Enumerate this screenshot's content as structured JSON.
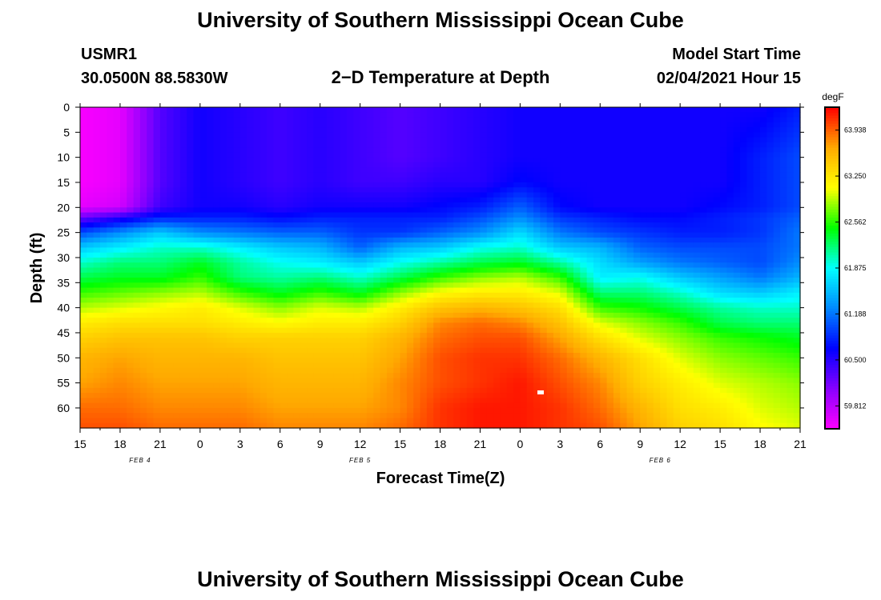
{
  "page": {
    "title_top": "University of Southern Mississippi Ocean Cube",
    "title_bottom": "University of Southern Mississippi Ocean Cube",
    "station_id": "USMR1",
    "coordinates": "30.0500N 88.5830W",
    "plot_title": "2−D Temperature at Depth",
    "model_start_label": "Model Start Time",
    "model_start_value": "02/04/2021 Hour 15"
  },
  "chart_data": {
    "type": "heatmap",
    "title": "2−D Temperature at Depth",
    "xlabel": "Forecast Time(Z)",
    "ylabel": "Depth (ft)",
    "x_tick_labels": [
      "15",
      "18",
      "21",
      "0",
      "3",
      "6",
      "9",
      "12",
      "15",
      "18",
      "21",
      "0",
      "3",
      "6",
      "9",
      "12",
      "15",
      "18",
      "21"
    ],
    "date_labels": [
      {
        "label": "FEB 4",
        "tick_index": 1.5
      },
      {
        "label": "FEB 5",
        "tick_index": 7
      },
      {
        "label": "FEB 6",
        "tick_index": 14.5
      }
    ],
    "x_range_hours": [
      0,
      54
    ],
    "y_ticks": [
      0,
      5,
      10,
      15,
      20,
      25,
      30,
      35,
      40,
      45,
      50,
      55,
      60
    ],
    "ylim": [
      0,
      64
    ],
    "colorbar": {
      "unit": "degF",
      "vmin": 59.47,
      "vmax": 64.28,
      "tick_values": [
        63.938,
        63.25,
        62.562,
        61.875,
        61.188,
        60.5,
        59.812
      ],
      "tick_labels": [
        "63.938",
        "63.250",
        "62.562",
        "61.875",
        "61.188",
        "60.500",
        "59.812"
      ],
      "colors": [
        "#ff00ff",
        "#8800ff",
        "#0000ff",
        "#0088ff",
        "#00ffff",
        "#00ff00",
        "#ffff00",
        "#ffaa00",
        "#ff0000"
      ]
    },
    "grid": {
      "hours": [
        0,
        3,
        6,
        9,
        12,
        15,
        18,
        21,
        24,
        27,
        30,
        33,
        36,
        39,
        42,
        45,
        48,
        51,
        54
      ],
      "depths": [
        0,
        5,
        10,
        15,
        20,
        22,
        25,
        28,
        31,
        34,
        37,
        40,
        43,
        46,
        50,
        55,
        60,
        64
      ],
      "temperatures": [
        [
          59.5,
          59.6,
          60.3,
          60.6,
          60.5,
          60.4,
          60.5,
          60.4,
          60.3,
          60.4,
          60.5,
          60.6,
          60.6,
          60.6,
          60.6,
          60.6,
          60.6,
          60.6,
          60.8
        ],
        [
          59.5,
          59.6,
          60.3,
          60.6,
          60.5,
          60.4,
          60.5,
          60.4,
          60.3,
          60.4,
          60.5,
          60.6,
          60.6,
          60.6,
          60.6,
          60.6,
          60.6,
          60.7,
          60.9
        ],
        [
          59.5,
          59.6,
          60.3,
          60.6,
          60.5,
          60.4,
          60.5,
          60.4,
          60.3,
          60.4,
          60.5,
          60.6,
          60.6,
          60.6,
          60.6,
          60.6,
          60.6,
          60.8,
          61.0
        ],
        [
          59.5,
          59.6,
          60.3,
          60.6,
          60.5,
          60.4,
          60.5,
          60.4,
          60.4,
          60.5,
          60.5,
          60.7,
          60.6,
          60.6,
          60.6,
          60.6,
          60.6,
          60.8,
          61.0
        ],
        [
          59.6,
          59.7,
          60.4,
          60.6,
          60.6,
          60.5,
          60.6,
          60.6,
          60.6,
          60.7,
          60.8,
          61.1,
          60.7,
          60.6,
          60.6,
          60.6,
          60.7,
          60.8,
          61.0
        ],
        [
          60.2,
          60.5,
          60.8,
          60.8,
          60.8,
          60.7,
          60.8,
          60.8,
          60.8,
          60.8,
          61.0,
          61.3,
          60.9,
          60.8,
          60.7,
          60.7,
          60.8,
          60.9,
          61.1
        ],
        [
          61.0,
          61.3,
          61.6,
          61.3,
          61.2,
          61.1,
          61.1,
          60.9,
          60.9,
          61.1,
          61.3,
          61.7,
          61.2,
          61.0,
          60.9,
          60.8,
          60.8,
          60.9,
          61.2
        ],
        [
          61.6,
          61.8,
          62.0,
          62.0,
          61.8,
          61.6,
          61.5,
          61.1,
          61.5,
          61.6,
          61.9,
          62.0,
          61.6,
          61.5,
          61.1,
          61.0,
          61.0,
          61.0,
          61.2
        ],
        [
          62.0,
          62.2,
          62.2,
          62.4,
          62.1,
          61.9,
          61.8,
          61.6,
          61.9,
          62.1,
          62.3,
          62.4,
          62.1,
          61.7,
          61.4,
          61.2,
          61.1,
          61.0,
          61.3
        ],
        [
          62.3,
          62.4,
          62.4,
          62.6,
          62.2,
          62.1,
          62.2,
          62.0,
          62.3,
          62.6,
          62.8,
          62.9,
          62.6,
          61.8,
          61.9,
          61.6,
          61.4,
          61.2,
          61.5
        ],
        [
          62.6,
          62.7,
          62.8,
          62.9,
          62.6,
          62.4,
          62.6,
          62.4,
          62.8,
          63.1,
          63.2,
          63.2,
          63.0,
          62.2,
          62.2,
          62.0,
          61.7,
          61.6,
          61.8
        ],
        [
          62.9,
          63.0,
          63.1,
          63.2,
          63.0,
          62.8,
          63.0,
          62.9,
          63.2,
          63.5,
          63.6,
          63.5,
          63.3,
          62.6,
          62.5,
          62.3,
          62.1,
          62.0,
          62.0
        ],
        [
          63.2,
          63.3,
          63.3,
          63.3,
          63.2,
          63.1,
          63.2,
          63.2,
          63.4,
          63.8,
          63.9,
          63.8,
          63.5,
          63.0,
          62.8,
          62.6,
          62.3,
          62.2,
          62.2
        ],
        [
          63.4,
          63.5,
          63.5,
          63.5,
          63.4,
          63.4,
          63.4,
          63.4,
          63.6,
          63.9,
          64.0,
          64.0,
          63.7,
          63.3,
          63.0,
          62.8,
          62.6,
          62.5,
          62.4
        ],
        [
          63.6,
          63.7,
          63.6,
          63.6,
          63.6,
          63.5,
          63.5,
          63.5,
          63.7,
          64.0,
          64.1,
          64.1,
          63.9,
          63.6,
          63.3,
          63.0,
          62.8,
          62.7,
          62.6
        ],
        [
          63.7,
          63.8,
          63.7,
          63.7,
          63.7,
          63.6,
          63.6,
          63.6,
          63.8,
          64.0,
          64.1,
          64.2,
          64.0,
          63.8,
          63.4,
          63.2,
          63.0,
          62.9,
          62.8
        ],
        [
          63.9,
          63.9,
          63.8,
          63.8,
          63.8,
          63.7,
          63.7,
          63.7,
          63.8,
          64.1,
          64.2,
          64.2,
          64.1,
          63.9,
          63.6,
          63.3,
          63.2,
          63.0,
          62.9
        ],
        [
          64.0,
          64.0,
          63.9,
          63.9,
          63.9,
          63.8,
          63.8,
          63.8,
          63.9,
          64.1,
          64.2,
          64.2,
          64.1,
          64.0,
          63.7,
          63.4,
          63.3,
          63.1,
          63.0
        ]
      ]
    }
  }
}
